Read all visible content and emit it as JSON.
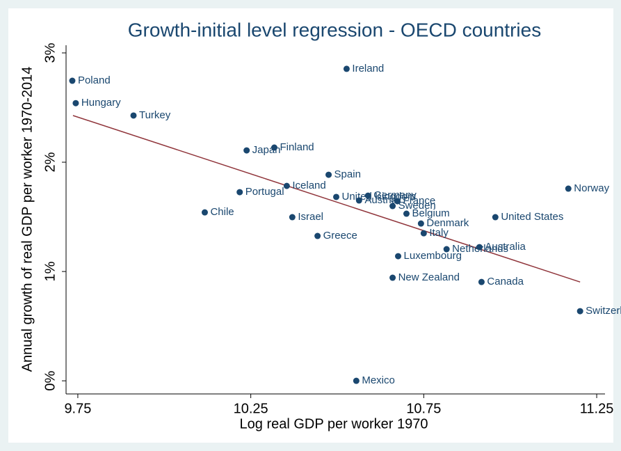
{
  "chart_data": {
    "type": "scatter",
    "title": "Growth-initial level regression - OECD countries",
    "x_label": "Log real GDP per worker 1970",
    "y_label": "Annual growth of real GDP per worker 1970-2014",
    "labels": [
      "Poland",
      "Hungary",
      "Turkey",
      "Ireland",
      "Japan",
      "Finland",
      "Spain",
      "Iceland",
      "Portugal",
      "Chile",
      "Israel",
      "Greece",
      "United Kingdom",
      "Austria",
      "Germany",
      "France",
      "Sweden",
      "Belgium",
      "Denmark",
      "Italy",
      "Netherlands",
      "Australia",
      "Luxembourg",
      "New Zealand",
      "Canada",
      "United States",
      "Norway",
      "Switzerland",
      "Mexico"
    ],
    "x": [
      9.734,
      9.744,
      9.911,
      10.527,
      10.238,
      10.318,
      10.475,
      10.354,
      10.218,
      10.117,
      10.37,
      10.443,
      10.497,
      10.563,
      10.589,
      10.674,
      10.66,
      10.7,
      10.742,
      10.75,
      10.816,
      10.911,
      10.676,
      10.66,
      10.917,
      10.957,
      11.168,
      11.202,
      10.555
    ],
    "y": [
      2.745,
      2.54,
      2.427,
      2.854,
      2.108,
      2.134,
      1.885,
      1.783,
      1.726,
      1.541,
      1.497,
      1.325,
      1.682,
      1.65,
      1.694,
      1.643,
      1.599,
      1.529,
      1.439,
      1.35,
      1.204,
      1.223,
      1.14,
      0.943,
      0.904,
      1.497,
      1.758,
      0.637,
      0.0
    ],
    "color": "#1a476f",
    "fit_line": {
      "x": [
        9.736,
        11.202
      ],
      "y": [
        2.427,
        0.904
      ],
      "color": "#90353b"
    },
    "xlim": [
      9.716,
      11.274
    ],
    "xticks": [
      9.75,
      10.25,
      10.75,
      11.25
    ],
    "ylim": [
      -0.12,
      3.07
    ],
    "yticks": [
      {
        "value": 0,
        "label": "0%"
      },
      {
        "value": 1,
        "label": "1%"
      },
      {
        "value": 2,
        "label": "2%"
      },
      {
        "value": 3,
        "label": "3%"
      }
    ]
  }
}
